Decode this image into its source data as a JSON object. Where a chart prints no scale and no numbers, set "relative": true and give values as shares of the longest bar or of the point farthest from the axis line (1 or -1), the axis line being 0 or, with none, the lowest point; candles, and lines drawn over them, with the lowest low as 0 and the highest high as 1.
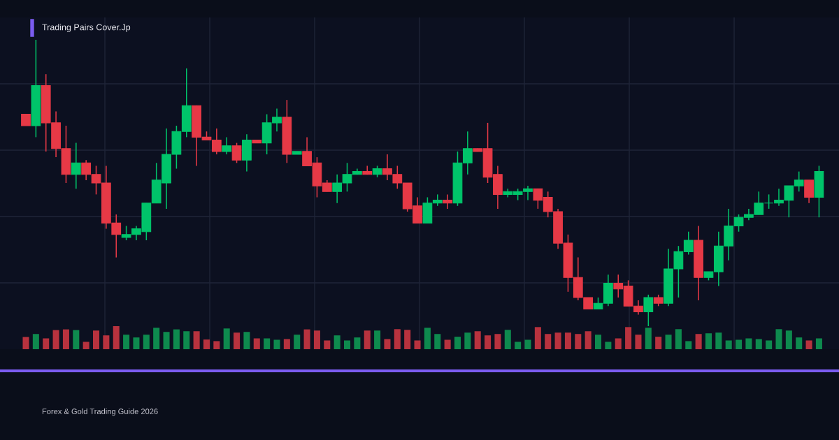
{
  "chart_data": [
    {
      "type": "candlestick",
      "title": "Trading Pairs Cover.Jp",
      "relative": true,
      "grid": true,
      "annotations": [
        "Forex & Gold Trading Guide 2026"
      ],
      "categories": [
        null,
        null,
        null,
        null,
        null,
        null,
        null,
        null,
        null,
        null,
        null,
        null,
        null,
        null,
        null,
        null,
        null,
        null,
        null,
        null,
        null,
        null,
        null,
        null,
        null,
        null,
        null,
        null,
        null,
        null,
        null,
        null,
        null,
        null,
        null,
        null,
        null,
        null,
        null,
        null,
        null,
        null,
        null,
        null,
        null,
        null,
        null,
        null,
        null,
        null,
        null,
        null,
        null,
        null,
        null,
        null,
        null,
        null,
        null,
        null,
        null,
        null,
        null,
        null,
        null,
        null,
        null,
        null,
        null,
        null,
        null,
        null,
        null,
        null,
        null,
        null,
        null,
        null,
        null,
        null
      ],
      "ohlc": [
        [
          0.74,
          0.74,
          0.7,
          0.7
        ],
        [
          0.7,
          1.0,
          0.66,
          0.84
        ],
        [
          0.84,
          0.88,
          0.61,
          0.71
        ],
        [
          0.71,
          0.75,
          0.59,
          0.62
        ],
        [
          0.62,
          0.7,
          0.5,
          0.53
        ],
        [
          0.53,
          0.64,
          0.48,
          0.57
        ],
        [
          0.57,
          0.58,
          0.51,
          0.53
        ],
        [
          0.53,
          0.56,
          0.46,
          0.5
        ],
        [
          0.5,
          0.56,
          0.34,
          0.36
        ],
        [
          0.36,
          0.39,
          0.24,
          0.32
        ],
        [
          0.31,
          0.35,
          0.3,
          0.32
        ],
        [
          0.32,
          0.35,
          0.3,
          0.34
        ],
        [
          0.33,
          0.43,
          0.3,
          0.43
        ],
        [
          0.43,
          0.57,
          0.43,
          0.51
        ],
        [
          0.5,
          0.69,
          0.41,
          0.6
        ],
        [
          0.6,
          0.7,
          0.55,
          0.68
        ],
        [
          0.68,
          0.9,
          0.66,
          0.77
        ],
        [
          0.77,
          0.77,
          0.56,
          0.66
        ],
        [
          0.66,
          0.68,
          0.65,
          0.65
        ],
        [
          0.65,
          0.69,
          0.6,
          0.61
        ],
        [
          0.61,
          0.66,
          0.6,
          0.63
        ],
        [
          0.63,
          0.64,
          0.57,
          0.58
        ],
        [
          0.58,
          0.67,
          0.54,
          0.65
        ],
        [
          0.65,
          0.65,
          0.64,
          0.64
        ],
        [
          0.64,
          0.74,
          0.6,
          0.71
        ],
        [
          0.71,
          0.76,
          0.68,
          0.73
        ],
        [
          0.73,
          0.79,
          0.57,
          0.6
        ],
        [
          0.6,
          0.61,
          0.6,
          0.61
        ],
        [
          0.61,
          0.66,
          0.56,
          0.56
        ],
        [
          0.57,
          0.59,
          0.45,
          0.49
        ],
        [
          0.5,
          0.51,
          0.47,
          0.47
        ],
        [
          0.47,
          0.53,
          0.43,
          0.5
        ],
        [
          0.5,
          0.57,
          0.47,
          0.53
        ],
        [
          0.53,
          0.55,
          0.53,
          0.54
        ],
        [
          0.54,
          0.56,
          0.53,
          0.53
        ],
        [
          0.53,
          0.56,
          0.52,
          0.55
        ],
        [
          0.55,
          0.6,
          0.51,
          0.53
        ],
        [
          0.53,
          0.56,
          0.48,
          0.5
        ],
        [
          0.5,
          0.5,
          0.4,
          0.41
        ],
        [
          0.42,
          0.45,
          0.36,
          0.36
        ],
        [
          0.36,
          0.45,
          0.36,
          0.43
        ],
        [
          0.43,
          0.46,
          0.42,
          0.44
        ],
        [
          0.44,
          0.46,
          0.41,
          0.43
        ],
        [
          0.43,
          0.61,
          0.42,
          0.57
        ],
        [
          0.57,
          0.68,
          0.53,
          0.62
        ],
        [
          0.62,
          0.62,
          0.61,
          0.61
        ],
        [
          0.62,
          0.71,
          0.5,
          0.52
        ],
        [
          0.53,
          0.56,
          0.41,
          0.46
        ],
        [
          0.46,
          0.48,
          0.45,
          0.47
        ],
        [
          0.46,
          0.48,
          0.44,
          0.47
        ],
        [
          0.47,
          0.49,
          0.44,
          0.48
        ],
        [
          0.48,
          0.48,
          0.41,
          0.44
        ],
        [
          0.45,
          0.47,
          0.38,
          0.4
        ],
        [
          0.4,
          0.41,
          0.27,
          0.29
        ],
        [
          0.29,
          0.32,
          0.12,
          0.17
        ],
        [
          0.17,
          0.24,
          0.09,
          0.1
        ],
        [
          0.1,
          0.1,
          0.06,
          0.06
        ],
        [
          0.06,
          0.1,
          0.06,
          0.08
        ],
        [
          0.08,
          0.18,
          0.07,
          0.15
        ],
        [
          0.15,
          0.18,
          0.1,
          0.13
        ],
        [
          0.14,
          0.16,
          0.07,
          0.07
        ],
        [
          0.07,
          0.09,
          0.04,
          0.05
        ],
        [
          0.05,
          0.11,
          0.0,
          0.1
        ],
        [
          0.1,
          0.11,
          0.07,
          0.08
        ],
        [
          0.08,
          0.27,
          0.07,
          0.2
        ],
        [
          0.2,
          0.28,
          0.1,
          0.26
        ],
        [
          0.26,
          0.33,
          0.25,
          0.3
        ],
        [
          0.3,
          0.35,
          0.09,
          0.17
        ],
        [
          0.17,
          0.19,
          0.16,
          0.19
        ],
        [
          0.19,
          0.33,
          0.14,
          0.28
        ],
        [
          0.28,
          0.41,
          0.23,
          0.35
        ],
        [
          0.35,
          0.39,
          0.33,
          0.38
        ],
        [
          0.38,
          0.41,
          0.37,
          0.39
        ],
        [
          0.39,
          0.47,
          0.39,
          0.43
        ],
        [
          0.43,
          0.46,
          0.41,
          0.43
        ],
        [
          0.43,
          0.48,
          0.42,
          0.44
        ],
        [
          0.44,
          0.49,
          0.38,
          0.49
        ],
        [
          0.49,
          0.54,
          0.47,
          0.51
        ],
        [
          0.51,
          0.51,
          0.43,
          0.45
        ],
        [
          0.45,
          0.56,
          0.38,
          0.54
        ]
      ],
      "colors": [
        "#e63946",
        "#00c46a",
        "#e63946",
        "#e63946",
        "#e63946",
        "#00c46a",
        "#e63946",
        "#e63946",
        "#e63946",
        "#e63946",
        "#00c46a",
        "#00c46a",
        "#00c46a",
        "#00c46a",
        "#00c46a",
        "#00c46a",
        "#00c46a",
        "#e63946",
        "#e63946",
        "#e63946",
        "#00c46a",
        "#e63946",
        "#00c46a",
        "#e63946",
        "#00c46a",
        "#00c46a",
        "#e63946",
        "#00c46a",
        "#e63946",
        "#e63946",
        "#e63946",
        "#00c46a",
        "#00c46a",
        "#00c46a",
        "#e63946",
        "#00c46a",
        "#e63946",
        "#e63946",
        "#e63946",
        "#e63946",
        "#00c46a",
        "#00c46a",
        "#e63946",
        "#00c46a",
        "#00c46a",
        "#e63946",
        "#e63946",
        "#e63946",
        "#00c46a",
        "#00c46a",
        "#00c46a",
        "#e63946",
        "#e63946",
        "#e63946",
        "#e63946",
        "#e63946",
        "#e63946",
        "#00c46a",
        "#00c46a",
        "#e63946",
        "#e63946",
        "#e63946",
        "#00c46a",
        "#e63946",
        "#00c46a",
        "#00c46a",
        "#00c46a",
        "#e63946",
        "#00c46a",
        "#00c46a",
        "#00c46a",
        "#00c46a",
        "#00c46a",
        "#00c46a",
        "#00c46a",
        "#00c46a",
        "#00c46a",
        "#00c46a",
        "#e63946",
        "#00c46a"
      ]
    },
    {
      "type": "bar",
      "relative": true,
      "categories": [
        null,
        null,
        null,
        null,
        null,
        null,
        null,
        null,
        null,
        null,
        null,
        null,
        null,
        null,
        null,
        null,
        null,
        null,
        null,
        null,
        null,
        null,
        null,
        null,
        null,
        null,
        null,
        null,
        null,
        null,
        null,
        null,
        null,
        null,
        null,
        null,
        null,
        null,
        null,
        null,
        null,
        null,
        null,
        null,
        null,
        null,
        null,
        null,
        null,
        null,
        null,
        null,
        null,
        null,
        null,
        null,
        null,
        null,
        null,
        null,
        null,
        null,
        null,
        null,
        null,
        null,
        null,
        null,
        null,
        null,
        null,
        null,
        null,
        null,
        null,
        null,
        null,
        null,
        null,
        null
      ],
      "values": [
        0.53,
        0.66,
        0.47,
        0.83,
        0.86,
        0.83,
        0.32,
        0.81,
        0.6,
        1.0,
        0.63,
        0.51,
        0.63,
        0.93,
        0.75,
        0.86,
        0.78,
        0.78,
        0.42,
        0.35,
        0.9,
        0.72,
        0.75,
        0.47,
        0.47,
        0.41,
        0.44,
        0.63,
        0.86,
        0.81,
        0.38,
        0.6,
        0.38,
        0.51,
        0.81,
        0.81,
        0.44,
        0.87,
        0.84,
        0.38,
        0.93,
        0.66,
        0.41,
        0.54,
        0.72,
        0.78,
        0.6,
        0.66,
        0.84,
        0.32,
        0.41,
        0.96,
        0.66,
        0.72,
        0.72,
        0.66,
        0.78,
        0.63,
        0.32,
        0.47,
        0.96,
        0.63,
        0.93,
        0.54,
        0.63,
        0.87,
        0.35,
        0.66,
        0.69,
        0.72,
        0.38,
        0.41,
        0.47,
        0.44,
        0.38,
        0.87,
        0.81,
        0.51,
        0.38,
        0.47
      ],
      "colors": [
        "#b8323e",
        "#0e8a4e",
        "#b8323e",
        "#b8323e",
        "#b8323e",
        "#0e8a4e",
        "#b8323e",
        "#b8323e",
        "#b8323e",
        "#b8323e",
        "#0e8a4e",
        "#0e8a4e",
        "#0e8a4e",
        "#0e8a4e",
        "#0e8a4e",
        "#0e8a4e",
        "#0e8a4e",
        "#b8323e",
        "#b8323e",
        "#b8323e",
        "#0e8a4e",
        "#b8323e",
        "#0e8a4e",
        "#b8323e",
        "#0e8a4e",
        "#0e8a4e",
        "#b8323e",
        "#0e8a4e",
        "#b8323e",
        "#b8323e",
        "#b8323e",
        "#0e8a4e",
        "#0e8a4e",
        "#0e8a4e",
        "#b8323e",
        "#0e8a4e",
        "#b8323e",
        "#b8323e",
        "#b8323e",
        "#b8323e",
        "#0e8a4e",
        "#0e8a4e",
        "#b8323e",
        "#0e8a4e",
        "#0e8a4e",
        "#b8323e",
        "#b8323e",
        "#b8323e",
        "#0e8a4e",
        "#0e8a4e",
        "#0e8a4e",
        "#b8323e",
        "#b8323e",
        "#b8323e",
        "#b8323e",
        "#b8323e",
        "#b8323e",
        "#0e8a4e",
        "#0e8a4e",
        "#b8323e",
        "#b8323e",
        "#b8323e",
        "#0e8a4e",
        "#b8323e",
        "#0e8a4e",
        "#0e8a4e",
        "#0e8a4e",
        "#b8323e",
        "#0e8a4e",
        "#0e8a4e",
        "#0e8a4e",
        "#0e8a4e",
        "#0e8a4e",
        "#0e8a4e",
        "#0e8a4e",
        "#0e8a4e",
        "#0e8a4e",
        "#0e8a4e",
        "#b8323e",
        "#0e8a4e"
      ]
    }
  ]
}
